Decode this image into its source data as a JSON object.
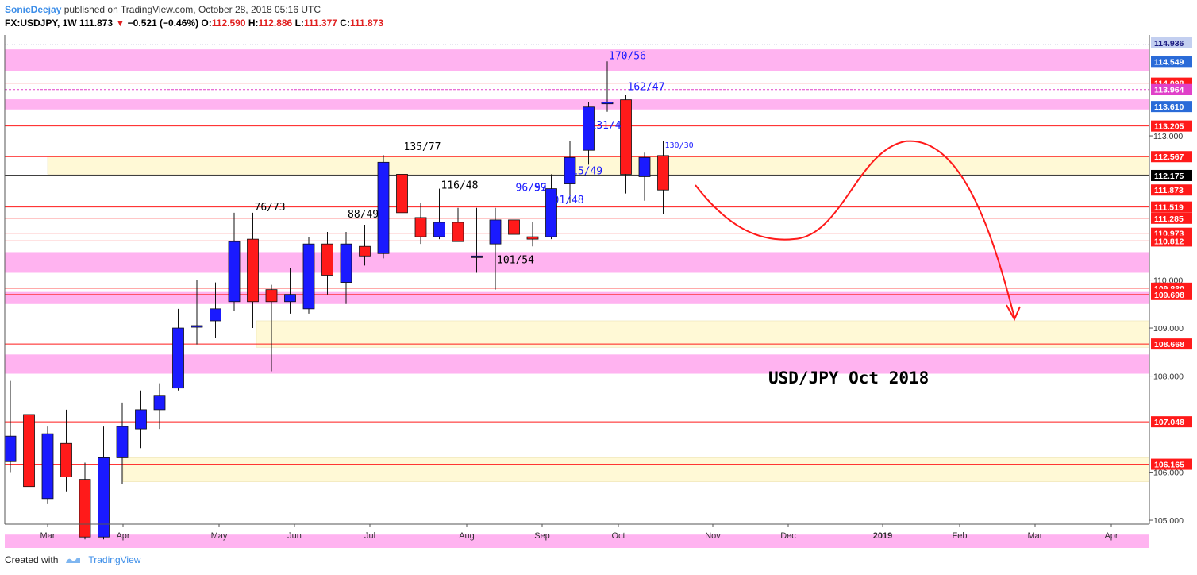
{
  "header": {
    "author": "SonicDeejay",
    "published": "published on TradingView.com, October 28, 2018 05:16 UTC",
    "symbol": "FX:USDJPY, 1W",
    "last": "111.873",
    "arrow": "▼",
    "change": "−0.521 (−0.46%)",
    "o_label": "O:",
    "o": "112.590",
    "h_label": "H:",
    "h": "112.886",
    "l_label": "L:",
    "l": "111.377",
    "c_label": "C:",
    "c": "111.873"
  },
  "footer": {
    "created_with": "Created with",
    "brand": "TradingView"
  },
  "colors": {
    "up": "#1a1aff",
    "down": "#ff1a1a",
    "pink_zone": "#ffb3f0",
    "yellow_zone": "#fff9d6",
    "level_line": "#ff1a1a",
    "price_line": "#000000",
    "annotation": "#1a1aff",
    "arrow": "#ff1a1a"
  },
  "chart_data": {
    "type": "candlestick",
    "title": "USD/JPY Oct 2018",
    "timeframe": "1W",
    "ylim": [
      104.2,
      115.1
    ],
    "x_ticks": [
      "Mar",
      "Apr",
      "May",
      "Jun",
      "Jul",
      "Aug",
      "Sep",
      "Oct",
      "Nov",
      "Dec",
      "2019",
      "Feb",
      "Mar",
      "Apr"
    ],
    "y_ticks": [
      "105.000",
      "106.000",
      "108.000",
      "109.000",
      "110.000",
      "113.000"
    ],
    "weeks": [
      {
        "o": 106.22,
        "h": 107.9,
        "l": 106.0,
        "c": 106.75
      },
      {
        "o": 107.2,
        "h": 107.7,
        "l": 105.3,
        "c": 105.7
      },
      {
        "o": 105.45,
        "h": 106.95,
        "l": 105.35,
        "c": 106.8
      },
      {
        "o": 106.6,
        "h": 107.3,
        "l": 105.6,
        "c": 105.9
      },
      {
        "o": 105.85,
        "h": 106.2,
        "l": 104.6,
        "c": 104.65
      },
      {
        "o": 104.65,
        "h": 106.95,
        "l": 104.6,
        "c": 106.3
      },
      {
        "o": 106.3,
        "h": 107.45,
        "l": 105.75,
        "c": 106.95
      },
      {
        "o": 106.9,
        "h": 107.7,
        "l": 106.5,
        "c": 107.3
      },
      {
        "o": 107.3,
        "h": 107.85,
        "l": 106.9,
        "c": 107.6
      },
      {
        "o": 107.75,
        "h": 109.4,
        "l": 107.7,
        "c": 109.0
      },
      {
        "o": 109.05,
        "h": 110.0,
        "l": 108.66,
        "c": 109.05
      },
      {
        "o": 109.15,
        "h": 109.95,
        "l": 108.8,
        "c": 109.4
      },
      {
        "o": 109.55,
        "h": 111.4,
        "l": 109.35,
        "c": 110.8
      },
      {
        "o": 110.85,
        "h": 111.4,
        "l": 109.0,
        "c": 109.55
      },
      {
        "o": 109.8,
        "h": 109.9,
        "l": 108.1,
        "c": 109.55
      },
      {
        "o": 109.55,
        "h": 110.25,
        "l": 109.3,
        "c": 109.7
      },
      {
        "o": 109.4,
        "h": 110.9,
        "l": 109.3,
        "c": 110.75
      },
      {
        "o": 110.75,
        "h": 111.0,
        "l": 109.7,
        "c": 110.1
      },
      {
        "o": 109.95,
        "h": 111.0,
        "l": 109.5,
        "c": 110.75
      },
      {
        "o": 110.7,
        "h": 111.15,
        "l": 110.3,
        "c": 110.5
      },
      {
        "o": 110.55,
        "h": 112.6,
        "l": 110.45,
        "c": 112.45
      },
      {
        "o": 112.2,
        "h": 113.2,
        "l": 111.25,
        "c": 111.4
      },
      {
        "o": 111.3,
        "h": 111.6,
        "l": 110.75,
        "c": 110.9
      },
      {
        "o": 110.9,
        "h": 111.9,
        "l": 110.85,
        "c": 111.2
      },
      {
        "o": 111.2,
        "h": 111.5,
        "l": 110.8,
        "c": 110.8
      },
      {
        "o": 110.5,
        "h": 111.5,
        "l": 110.15,
        "c": 110.5
      },
      {
        "o": 110.75,
        "h": 111.5,
        "l": 109.8,
        "c": 111.25
      },
      {
        "o": 111.25,
        "h": 112.0,
        "l": 110.8,
        "c": 110.95
      },
      {
        "o": 110.9,
        "h": 111.2,
        "l": 110.7,
        "c": 110.85
      },
      {
        "o": 110.9,
        "h": 112.2,
        "l": 110.85,
        "c": 111.9
      },
      {
        "o": 112.0,
        "h": 112.9,
        "l": 111.6,
        "c": 112.55
      },
      {
        "o": 112.7,
        "h": 113.7,
        "l": 112.4,
        "c": 113.6
      },
      {
        "o": 113.7,
        "h": 114.55,
        "l": 113.5,
        "c": 113.7
      },
      {
        "o": 113.75,
        "h": 113.85,
        "l": 111.8,
        "c": 112.2
      },
      {
        "o": 112.15,
        "h": 112.65,
        "l": 111.65,
        "c": 112.55
      },
      {
        "o": 112.59,
        "h": 112.886,
        "l": 111.377,
        "c": 111.873
      }
    ],
    "levels": [
      {
        "price": 114.936,
        "label": "114.936",
        "color": "#c3cff0",
        "text": "#1a1a80",
        "line": false
      },
      {
        "price": 114.549,
        "label": "114.549",
        "color": "#2a6bd8",
        "text": "#ffffff",
        "line": false
      },
      {
        "price": 114.098,
        "label": "114.098",
        "color": "#ff1a1a",
        "text": "#ffffff",
        "line": true
      },
      {
        "price": 113.964,
        "label": "113.964",
        "color": "#e040c8",
        "text": "#ffffff",
        "line": false
      },
      {
        "price": 113.61,
        "label": "113.610",
        "color": "#2a6bd8",
        "text": "#ffffff",
        "line": false
      },
      {
        "price": 113.205,
        "label": "113.205",
        "color": "#ff1a1a",
        "text": "#ffffff",
        "line": true
      },
      {
        "price": 112.567,
        "label": "112.567",
        "color": "#ff1a1a",
        "text": "#ffffff",
        "line": true
      },
      {
        "price": 112.175,
        "label": "112.175",
        "color": "#000000",
        "text": "#ffffff",
        "line": true
      },
      {
        "price": 111.873,
        "label": "111.873",
        "color": "#ff1a1a",
        "text": "#ffffff",
        "line": false
      },
      {
        "price": 111.519,
        "label": "111.519",
        "color": "#ff1a1a",
        "text": "#ffffff",
        "line": true
      },
      {
        "price": 111.285,
        "label": "111.285",
        "color": "#ff1a1a",
        "text": "#ffffff",
        "line": true
      },
      {
        "price": 110.973,
        "label": "110.973",
        "color": "#ff1a1a",
        "text": "#ffffff",
        "line": true
      },
      {
        "price": 110.812,
        "label": "110.812",
        "color": "#ff1a1a",
        "text": "#ffffff",
        "line": true
      },
      {
        "price": 109.83,
        "label": "109.830",
        "color": "#ff1a1a",
        "text": "#ffffff",
        "line": true
      },
      {
        "price": 109.698,
        "label": "109.698",
        "color": "#ff1a1a",
        "text": "#ffffff",
        "line": true
      },
      {
        "price": 108.668,
        "label": "108.668",
        "color": "#ff1a1a",
        "text": "#ffffff",
        "line": true
      },
      {
        "price": 107.048,
        "label": "107.048",
        "color": "#ff1a1a",
        "text": "#ffffff",
        "line": true
      },
      {
        "price": 106.165,
        "label": "106.165",
        "color": "#ff1a1a",
        "text": "#ffffff",
        "line": true
      }
    ],
    "pink_zones": [
      [
        114.35,
        114.8
      ],
      [
        113.55,
        113.76
      ],
      [
        110.15,
        110.58
      ],
      [
        109.5,
        109.75
      ],
      [
        108.05,
        108.45
      ],
      [
        104.3,
        104.7
      ]
    ],
    "yellow_zones": [
      [
        112.2,
        112.57
      ],
      [
        108.6,
        109.15
      ],
      [
        105.8,
        106.3
      ]
    ],
    "dotted_level": 113.964,
    "annotations": [
      {
        "text": "170/56",
        "week": 32,
        "price": 114.6,
        "color": "#1a1aff"
      },
      {
        "text": "162/47",
        "week": 33,
        "price": 113.95,
        "color": "#1a1aff"
      },
      {
        "text": "131/4",
        "week": 31,
        "price": 113.15,
        "color": "#1a1aff"
      },
      {
        "text": "130/30",
        "week": 35,
        "price": 112.75,
        "color": "#1a1aff"
      },
      {
        "text": "135/77",
        "week": 21,
        "price": 112.7,
        "color": "#000000"
      },
      {
        "text": "15/49",
        "week": 30,
        "price": 112.2,
        "color": "#1a1aff"
      },
      {
        "text": "116/48",
        "week": 23,
        "price": 111.9,
        "color": "#000000"
      },
      {
        "text": "96/59",
        "week": 27,
        "price": 111.85,
        "color": "#1a1aff"
      },
      {
        "text": "97",
        "week": 28,
        "price": 111.85,
        "color": "#1a1aff"
      },
      {
        "text": "01/48",
        "week": 29,
        "price": 111.6,
        "color": "#1a1aff"
      },
      {
        "text": "76/73",
        "week": 13,
        "price": 111.45,
        "color": "#000000"
      },
      {
        "text": "88/49",
        "week": 18,
        "price": 111.3,
        "color": "#000000"
      },
      {
        "text": "101/54",
        "week": 26,
        "price": 110.35,
        "color": "#000000"
      }
    ]
  }
}
